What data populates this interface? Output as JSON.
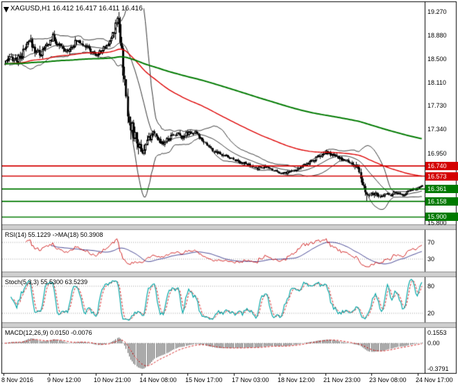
{
  "chart_title": "XAGUSD,H1 16.412 16.417 16.411 16.416",
  "window": {
    "symbol": "XAGUSD",
    "period": "H1",
    "open": "16.412",
    "high": "16.417",
    "low": "16.411",
    "close": "16.416"
  },
  "date_axis": [
    "8 Nov 2016",
    "9 Nov 12:00",
    "10 Nov 21:00",
    "14 Nov 08:00",
    "15 Nov 17:00",
    "17 Nov 03:00",
    "18 Nov 12:00",
    "21 Nov 23:00",
    "23 Nov 08:00",
    "24 Nov 17:00"
  ],
  "colors": {
    "background": "#ffffff",
    "border": "#000000",
    "bull": "#ffffff",
    "bear": "#000000",
    "wick": "#000000",
    "bollinger": "#2f2f2f",
    "ma_fast": "#dd0000",
    "ma_slow": "#007a00",
    "grid_dotted": "#9a9a9a",
    "divider": "#cfcfcf",
    "divider_edge": "#8a8a8a",
    "axis_text": "#000000"
  },
  "chart_data": [
    {
      "type": "candlestick",
      "panel": "price",
      "symbol": "XAGUSD",
      "timeframe": "H1",
      "bars": 280,
      "ohlc_last": {
        "open": 16.412,
        "high": 16.417,
        "low": 16.411,
        "close": 16.416
      },
      "ylim": [
        15.78,
        19.33
      ],
      "y_ticks": [
        19.27,
        18.88,
        18.5,
        18.11,
        17.73,
        17.34,
        16.95,
        15.8
      ],
      "levels": [
        {
          "price": 16.74,
          "color": "#d40000"
        },
        {
          "price": 16.573,
          "color": "#d40000"
        },
        {
          "price": 16.361,
          "color": "#007a00"
        },
        {
          "price": 16.158,
          "color": "#007a00"
        },
        {
          "price": 15.9,
          "color": "#007a00"
        }
      ],
      "overlays": [
        {
          "name": "Bollinger Bands",
          "color": "#2f2f2f"
        },
        {
          "name": "MA fast",
          "color": "#dd0000"
        },
        {
          "name": "MA slow",
          "color": "#007a00"
        }
      ],
      "x_labels": [
        "8 Nov 2016",
        "9 Nov 12:00",
        "10 Nov 21:00",
        "14 Nov 08:00",
        "15 Nov 17:00",
        "17 Nov 03:00",
        "18 Nov 12:00",
        "21 Nov 23:00",
        "23 Nov 08:00",
        "24 Nov 17:00"
      ],
      "price_path": [
        [
          0,
          18.42
        ],
        [
          0.015,
          18.52
        ],
        [
          0.03,
          18.48
        ],
        [
          0.045,
          18.62
        ],
        [
          0.06,
          18.8
        ],
        [
          0.07,
          18.65
        ],
        [
          0.085,
          18.58
        ],
        [
          0.1,
          18.72
        ],
        [
          0.115,
          18.86
        ],
        [
          0.13,
          18.7
        ],
        [
          0.145,
          18.62
        ],
        [
          0.16,
          18.72
        ],
        [
          0.175,
          18.8
        ],
        [
          0.19,
          18.74
        ],
        [
          0.205,
          18.62
        ],
        [
          0.22,
          18.56
        ],
        [
          0.235,
          18.66
        ],
        [
          0.25,
          18.76
        ],
        [
          0.262,
          19.0
        ],
        [
          0.27,
          19.24
        ],
        [
          0.278,
          18.75
        ],
        [
          0.286,
          18.1
        ],
        [
          0.295,
          17.6
        ],
        [
          0.305,
          17.32
        ],
        [
          0.318,
          17.1
        ],
        [
          0.33,
          16.98
        ],
        [
          0.34,
          17.12
        ],
        [
          0.352,
          17.28
        ],
        [
          0.365,
          17.18
        ],
        [
          0.38,
          17.12
        ],
        [
          0.395,
          17.22
        ],
        [
          0.41,
          17.28
        ],
        [
          0.425,
          17.22
        ],
        [
          0.44,
          17.3
        ],
        [
          0.455,
          17.28
        ],
        [
          0.47,
          17.2
        ],
        [
          0.485,
          17.08
        ],
        [
          0.5,
          16.98
        ],
        [
          0.515,
          16.93
        ],
        [
          0.53,
          16.9
        ],
        [
          0.545,
          16.86
        ],
        [
          0.56,
          16.82
        ],
        [
          0.575,
          16.78
        ],
        [
          0.59,
          16.73
        ],
        [
          0.605,
          16.7
        ],
        [
          0.62,
          16.73
        ],
        [
          0.635,
          16.7
        ],
        [
          0.65,
          16.66
        ],
        [
          0.665,
          16.62
        ],
        [
          0.68,
          16.64
        ],
        [
          0.695,
          16.68
        ],
        [
          0.71,
          16.72
        ],
        [
          0.725,
          16.78
        ],
        [
          0.74,
          16.84
        ],
        [
          0.755,
          16.9
        ],
        [
          0.77,
          16.96
        ],
        [
          0.785,
          16.92
        ],
        [
          0.8,
          16.87
        ],
        [
          0.815,
          16.83
        ],
        [
          0.83,
          16.8
        ],
        [
          0.845,
          16.7
        ],
        [
          0.856,
          16.45
        ],
        [
          0.865,
          16.28
        ],
        [
          0.875,
          16.24
        ],
        [
          0.885,
          16.3
        ],
        [
          0.895,
          16.22
        ],
        [
          0.905,
          16.24
        ],
        [
          0.915,
          16.3
        ],
        [
          0.925,
          16.26
        ],
        [
          0.935,
          16.31
        ],
        [
          0.945,
          16.28
        ],
        [
          0.955,
          16.26
        ],
        [
          0.965,
          16.32
        ],
        [
          0.975,
          16.36
        ],
        [
          0.985,
          16.34
        ],
        [
          1,
          16.416
        ]
      ],
      "volatility_path": [
        [
          0,
          0.1
        ],
        [
          0.06,
          0.14
        ],
        [
          0.12,
          0.12
        ],
        [
          0.2,
          0.09
        ],
        [
          0.25,
          0.07
        ],
        [
          0.265,
          0.2
        ],
        [
          0.28,
          0.4
        ],
        [
          0.3,
          0.3
        ],
        [
          0.33,
          0.18
        ],
        [
          0.36,
          0.1
        ],
        [
          0.42,
          0.08
        ],
        [
          0.5,
          0.06
        ],
        [
          0.6,
          0.05
        ],
        [
          0.7,
          0.05
        ],
        [
          0.77,
          0.07
        ],
        [
          0.82,
          0.06
        ],
        [
          0.86,
          0.14
        ],
        [
          0.88,
          0.09
        ],
        [
          0.92,
          0.05
        ],
        [
          1,
          0.03
        ]
      ]
    },
    {
      "type": "line",
      "panel": "indicator",
      "name": "RSI",
      "label": "RSI(14) 55.1229  ->MA(18) 50.3908",
      "period": 14,
      "value": 55.1229,
      "ma_period": 18,
      "ma_value": 50.3908,
      "levels": [
        70,
        30
      ],
      "range": [
        0,
        100
      ],
      "colors": {
        "main": "#d02020",
        "ma": "#404090"
      }
    },
    {
      "type": "line",
      "panel": "indicator",
      "name": "Stochastic",
      "label": "Stoch(5,3,3) 55.5300 63.5239",
      "params": [
        5,
        3,
        3
      ],
      "value": 55.53,
      "signal_value": 63.5239,
      "levels": [
        80,
        20
      ],
      "range": [
        0,
        100
      ],
      "colors": {
        "main": "#00a5a5",
        "signal": "#d02020"
      }
    },
    {
      "type": "histogram",
      "panel": "indicator",
      "name": "MACD",
      "label": "MACD(12,26,9) 0.0150 -0.0076",
      "params": [
        12,
        26,
        9
      ],
      "value": 0.015,
      "signal_value": -0.0076,
      "y_ticks": [
        {
          "value": 0.1553,
          "label": "0.1553"
        },
        {
          "value": 0,
          "label": "0.00"
        },
        {
          "value": -0.3791,
          "label": "-0.3791"
        }
      ],
      "colors": {
        "histogram": "#555555",
        "signal": "#d02020"
      }
    }
  ]
}
